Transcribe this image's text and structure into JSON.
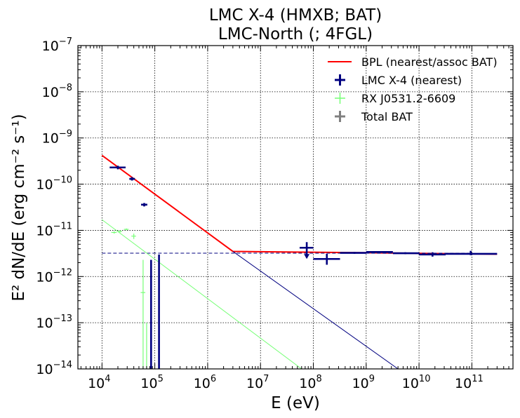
{
  "chart_data": {
    "type": "line",
    "title": [
      "LMC X-4 (HMXB; BAT)",
      "LMC-North (; 4FGL)"
    ],
    "xlabel": "E (eV)",
    "ylabel": "E² dN/dE (erg cm⁻² s⁻¹)",
    "xscale": "log",
    "yscale": "log",
    "xlim": [
      3500,
      600000000000.0
    ],
    "ylim": [
      1e-14,
      1e-07
    ],
    "x_ticks": [
      4,
      5,
      6,
      7,
      8,
      9,
      10,
      11
    ],
    "y_ticks": [
      -14,
      -13,
      -12,
      -11,
      -10,
      -9,
      -8,
      -7
    ],
    "grid": true,
    "legend_position": "top-right",
    "legend": [
      {
        "label": "BPL (nearest/assoc BAT)",
        "marker": "line",
        "color": "#ff0000"
      },
      {
        "label": "LMC X-4 (nearest)",
        "marker": "cross",
        "color": "#000080"
      },
      {
        "label": "RX J0531.2-6609",
        "marker": "cross",
        "color": "#77ff77"
      },
      {
        "label": "Total BAT",
        "marker": "cross",
        "color": "#808080"
      }
    ],
    "series": [
      {
        "name": "BPL (nearest/assoc BAT)",
        "kind": "line",
        "color": "#ff0000",
        "x": [
          10000,
          3000000,
          300000000000
        ],
        "y": [
          4.2e-10,
          3.5e-12,
          3.05e-12
        ]
      },
      {
        "kind": "line",
        "color": "#000080",
        "x": [
          3000000,
          4000000000
        ],
        "y": [
          3.5e-12,
          1e-14
        ]
      },
      {
        "kind": "dashed",
        "color": "#000080",
        "x": [
          10000,
          100000000000
        ],
        "y": [
          3.2e-12,
          3.2e-12
        ]
      },
      {
        "kind": "line",
        "color": "#77ff77",
        "x": [
          10000,
          60000000
        ],
        "y": [
          1.7e-11,
          1e-14
        ]
      },
      {
        "name": "Total BAT",
        "kind": "errorbar",
        "color": "#808080",
        "points": [
          {
            "x": 20000,
            "xlo": 14000,
            "xhi": 28000,
            "y": 2.3e-10,
            "ylo": 2.1e-10,
            "yhi": 2.5e-10
          },
          {
            "x": 37000,
            "xlo": 33000,
            "xhi": 42000,
            "y": 1.3e-10,
            "ylo": 1.2e-10,
            "yhi": 1.42e-10
          },
          {
            "x": 63000,
            "xlo": 55000,
            "xhi": 72000,
            "y": 3.6e-11,
            "ylo": 3.3e-11,
            "yhi": 3.9e-11
          }
        ]
      },
      {
        "name": "LMC X-4 (nearest)",
        "kind": "errorbar",
        "color": "#000080",
        "points": [
          {
            "x": 20000,
            "xlo": 14000,
            "xhi": 28000,
            "y": 2.3e-10,
            "ylo": 2.1e-10,
            "yhi": 2.5e-10
          },
          {
            "x": 37000,
            "xlo": 33000,
            "xhi": 42000,
            "y": 1.3e-10,
            "ylo": 1.2e-10,
            "yhi": 1.42e-10
          },
          {
            "x": 63000,
            "xlo": 55000,
            "xhi": 72000,
            "y": 3.6e-11,
            "ylo": 3.3e-11,
            "yhi": 3.9e-11
          },
          {
            "x": 85000,
            "y": 2.3e-12,
            "ylo": 1e-14,
            "yhi": 2.3e-12,
            "ul": false
          },
          {
            "x": 120000,
            "y": 3e-12,
            "ylo": 1e-14,
            "yhi": 3e-12
          },
          {
            "x": 75000000,
            "xlo": 55000000,
            "xhi": 100000000,
            "y": 4.2e-12,
            "ylo": 4.2e-12,
            "yhi": 4.2e-12,
            "ul": true
          },
          {
            "x": 180000000,
            "xlo": 100000000,
            "xhi": 320000000,
            "y": 2.4e-12,
            "ylo": 1.8e-12,
            "yhi": 3.1e-12
          },
          {
            "x": 600000000,
            "xlo": 320000000,
            "xhi": 1000000000,
            "y": 3.25e-12,
            "ylo": 3.1e-12,
            "yhi": 3.4e-12
          },
          {
            "x": 1800000000,
            "xlo": 1000000000,
            "xhi": 3200000000,
            "y": 3.4e-12,
            "ylo": 3.3e-12,
            "yhi": 3.5e-12
          },
          {
            "x": 5500000000,
            "xlo": 3200000000,
            "xhi": 10000000000,
            "y": 3.2e-12,
            "ylo": 3.05e-12,
            "yhi": 3.35e-12
          },
          {
            "x": 18000000000,
            "xlo": 10000000000,
            "xhi": 32000000000,
            "y": 3e-12,
            "ylo": 2.7e-12,
            "yhi": 3.35e-12
          },
          {
            "x": 95000000000,
            "xlo": 32000000000,
            "xhi": 300000000000,
            "y": 3.1e-12,
            "ylo": 2.9e-12,
            "yhi": 3.6e-12
          }
        ]
      },
      {
        "name": "RX J0531.2-6609",
        "kind": "errorbar",
        "color": "#77ff77",
        "points": [
          {
            "x": 17000,
            "xlo": 15000,
            "xhi": 19000,
            "y": 9e-12,
            "ylo": 8.5e-12,
            "yhi": 9.5e-12
          },
          {
            "x": 22000,
            "xlo": 20000,
            "xhi": 24000,
            "y": 9.5e-12,
            "ylo": 9e-12,
            "yhi": 1e-11
          },
          {
            "x": 29000,
            "xlo": 26000,
            "xhi": 32000,
            "y": 1.05e-11,
            "ylo": 1e-11,
            "yhi": 1.1e-11
          },
          {
            "x": 40000,
            "xlo": 36000,
            "xhi": 44000,
            "y": 7.5e-12,
            "ylo": 6.5e-12,
            "yhi": 8.5e-12
          },
          {
            "x": 60000,
            "xlo": 54000,
            "xhi": 66000,
            "y": 4.5e-13,
            "ylo": 1e-14,
            "yhi": 2.3e-12
          },
          {
            "x": 70000,
            "y": 1e-13,
            "ylo": 1e-14,
            "yhi": 1e-13
          }
        ]
      }
    ]
  }
}
